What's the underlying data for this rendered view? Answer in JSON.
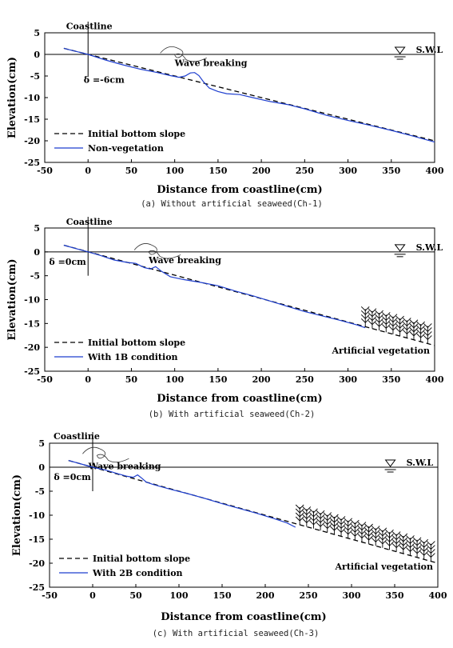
{
  "chart_data": [
    {
      "type": "line",
      "caption": "(a) Without artificial seaweed(Ch-1)",
      "xlabel": "Distance from coastline(cm)",
      "ylabel": "Elevation(cm)",
      "xlim": [
        -50,
        400
      ],
      "ylim": [
        -25,
        5
      ],
      "xticks": [
        -50,
        0,
        50,
        100,
        150,
        200,
        250,
        300,
        350,
        400
      ],
      "yticks": [
        5,
        0,
        -5,
        -10,
        -15,
        -20,
        -25
      ],
      "annotations": {
        "coastline": "Coastline",
        "wave_breaking": "Wave breaking",
        "swl": "S.W.L",
        "delta": "δ =-6cm"
      },
      "legend_position": "lower-left",
      "vegetation_label": "",
      "vegetation_range": null,
      "series": [
        {
          "name": "Initial bottom slope",
          "style": "dashed",
          "color": "#000000",
          "x": [
            -28,
            400
          ],
          "y": [
            1.4,
            -20.0
          ]
        },
        {
          "name": "Non-vegetation",
          "style": "solid",
          "color": "#1f3fcf",
          "x": [
            -28,
            -10,
            0,
            20,
            40,
            60,
            80,
            95,
            105,
            112,
            118,
            123,
            128,
            133,
            140,
            150,
            160,
            175,
            190,
            210,
            230,
            250,
            275,
            300,
            325,
            350,
            375,
            400
          ],
          "y": [
            1.4,
            0.5,
            0.0,
            -1.3,
            -2.4,
            -3.4,
            -4.2,
            -4.9,
            -5.3,
            -5.0,
            -4.3,
            -4.2,
            -4.9,
            -6.3,
            -7.8,
            -8.6,
            -9.1,
            -9.3,
            -10.0,
            -10.9,
            -11.6,
            -12.6,
            -14.1,
            -15.3,
            -16.4,
            -17.6,
            -18.9,
            -20.3
          ]
        }
      ]
    },
    {
      "type": "line",
      "caption": "(b) With artificial seaweed(Ch-2)",
      "xlabel": "Distance from coastline(cm)",
      "ylabel": "Elevation(cm)",
      "xlim": [
        -50,
        400
      ],
      "ylim": [
        -25,
        5
      ],
      "xticks": [
        -50,
        0,
        50,
        100,
        150,
        200,
        250,
        300,
        350,
        400
      ],
      "yticks": [
        5,
        0,
        -5,
        -10,
        -15,
        -20,
        -25
      ],
      "annotations": {
        "coastline": "Coastline",
        "wave_breaking": "Wave breaking",
        "swl": "S.W.L",
        "delta": "δ =0cm"
      },
      "legend_position": "lower-left",
      "vegetation_label": "Artificial vegetation",
      "vegetation_range": [
        320,
        400
      ],
      "series": [
        {
          "name": "Initial bottom slope",
          "style": "dashed",
          "color": "#000000",
          "x": [
            -28,
            400
          ],
          "y": [
            1.4,
            -19.6
          ]
        },
        {
          "name": "With 1B condition",
          "style": "solid",
          "color": "#1f3fcf",
          "x": [
            -28,
            -10,
            0,
            15,
            30,
            45,
            55,
            65,
            72,
            78,
            85,
            95,
            110,
            130,
            150,
            170,
            190,
            210,
            230,
            250,
            270,
            290,
            310,
            320
          ],
          "y": [
            1.4,
            0.5,
            0.0,
            -0.8,
            -1.7,
            -2.2,
            -2.4,
            -3.3,
            -3.6,
            -3.1,
            -4.1,
            -5.2,
            -5.8,
            -6.4,
            -7.1,
            -8.2,
            -9.2,
            -10.3,
            -11.4,
            -12.5,
            -13.4,
            -14.3,
            -15.3,
            -15.9
          ]
        }
      ]
    },
    {
      "type": "line",
      "caption": "(c) With artificial seaweed(Ch-3)",
      "xlabel": "Distance from coastline(cm)",
      "ylabel": "Elevation(cm)",
      "xlim": [
        -50,
        400
      ],
      "ylim": [
        -25,
        5
      ],
      "xticks": [
        -50,
        0,
        50,
        100,
        150,
        200,
        250,
        300,
        350,
        400
      ],
      "yticks": [
        5,
        0,
        -5,
        -10,
        -15,
        -20,
        -25
      ],
      "annotations": {
        "coastline": "Coastline",
        "wave_breaking": "Wave breaking",
        "swl": "S.W.L",
        "delta": "δ =0cm"
      },
      "legend_position": "lower-left",
      "vegetation_label": "Artificial vegetation",
      "vegetation_range": [
        240,
        400
      ],
      "series": [
        {
          "name": "Initial bottom slope",
          "style": "dashed",
          "color": "#000000",
          "x": [
            -28,
            400
          ],
          "y": [
            1.4,
            -20.0
          ]
        },
        {
          "name": "With 2B condition",
          "style": "solid",
          "color": "#1f3fcf",
          "x": [
            -28,
            -10,
            0,
            15,
            30,
            40,
            47,
            52,
            57,
            62,
            70,
            90,
            110,
            130,
            150,
            170,
            190,
            210,
            225,
            235
          ],
          "y": [
            1.4,
            0.5,
            0.0,
            -0.6,
            -1.4,
            -1.9,
            -2.1,
            -1.6,
            -2.3,
            -3.1,
            -3.6,
            -4.6,
            -5.5,
            -6.5,
            -7.6,
            -8.6,
            -9.6,
            -10.7,
            -11.6,
            -12.5
          ]
        }
      ]
    }
  ]
}
